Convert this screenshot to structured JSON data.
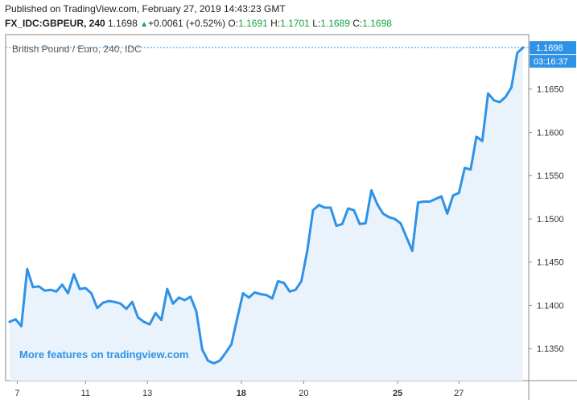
{
  "header": {
    "published": "Published on TradingView.com, February 27, 2019 14:43:23 GMT",
    "symbol": "FX_IDC:GBPEUR, 240",
    "last": "1.1698",
    "change": "+0.0061 (+0.52%)",
    "o_label": "O:",
    "o_value": "1.1691",
    "h_label": "H:",
    "h_value": "1.1701",
    "l_label": "L:",
    "l_value": "1.1689",
    "c_label": "C:",
    "c_value": "1.1698"
  },
  "chart_data": {
    "type": "area",
    "title": "British Pound / Euro, 240, IDC",
    "watermark": "More features on tradingview.com",
    "last_price_label": "1.1698",
    "countdown_label": "03:16:37",
    "y_ticks": [
      "1.1350",
      "1.1400",
      "1.1450",
      "1.1500",
      "1.1550",
      "1.1600",
      "1.1650"
    ],
    "x_ticks": [
      {
        "label": "7",
        "bold": false,
        "index": 1.3
      },
      {
        "label": "11",
        "bold": false,
        "index": 13
      },
      {
        "label": "13",
        "bold": false,
        "index": 23.6
      },
      {
        "label": "18",
        "bold": true,
        "index": 39.7
      },
      {
        "label": "20",
        "bold": false,
        "index": 50.4
      },
      {
        "label": "25",
        "bold": true,
        "index": 66.5
      },
      {
        "label": "27",
        "bold": false,
        "index": 77
      }
    ],
    "ylim": [
      1.1313,
      1.1713
    ],
    "colors": {
      "line": "#2e92e6",
      "fill": "#eaf3fc",
      "last_price": "#2e92e6"
    },
    "values": [
      1.1381,
      1.1384,
      1.1376,
      1.1442,
      1.1421,
      1.1422,
      1.1417,
      1.1418,
      1.1416,
      1.1424,
      1.1414,
      1.1436,
      1.1419,
      1.142,
      1.1414,
      1.1397,
      1.1403,
      1.1405,
      1.1404,
      1.1402,
      1.1396,
      1.1404,
      1.1386,
      1.1381,
      1.1378,
      1.1391,
      1.1383,
      1.1419,
      1.1402,
      1.1409,
      1.1406,
      1.141,
      1.1393,
      1.1349,
      1.1336,
      1.1333,
      1.1336,
      1.1345,
      1.1355,
      1.1385,
      1.1414,
      1.1409,
      1.1415,
      1.1413,
      1.1412,
      1.1408,
      1.1428,
      1.1426,
      1.1416,
      1.1418,
      1.1428,
      1.1463,
      1.151,
      1.1516,
      1.1513,
      1.1513,
      1.1492,
      1.1494,
      1.1512,
      1.151,
      1.1494,
      1.1495,
      1.1533,
      1.1517,
      1.1506,
      1.1502,
      1.15,
      1.1495,
      1.1479,
      1.1463,
      1.1519,
      1.152,
      1.152,
      1.1523,
      1.1526,
      1.1506,
      1.1527,
      1.153,
      1.1559,
      1.1557,
      1.1595,
      1.159,
      1.1645,
      1.1637,
      1.1635,
      1.1641,
      1.1652,
      1.1692,
      1.1698
    ]
  }
}
